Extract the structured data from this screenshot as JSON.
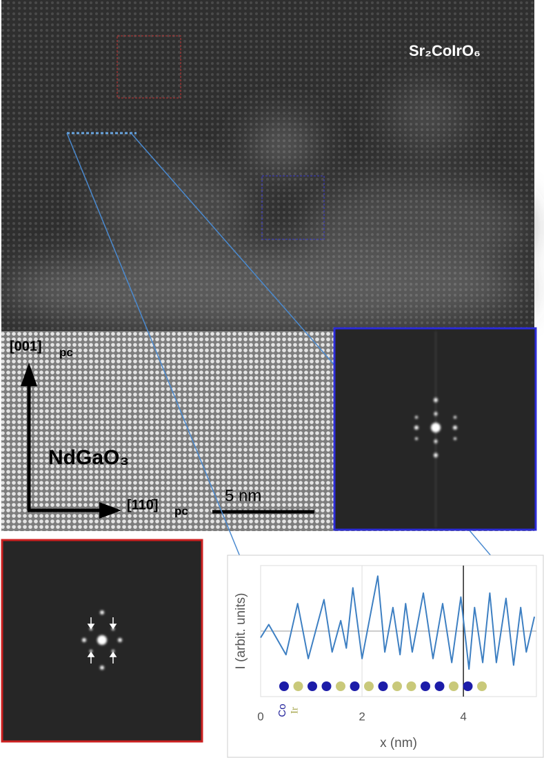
{
  "image": {
    "film_label": "Sr₂CoIrO₆",
    "substrate_label": "NdGaO₃",
    "axis_vertical": {
      "index": "[001]",
      "subscript": "pc"
    },
    "axis_horizontal": {
      "index": "[110̄]",
      "subscript": "pc"
    },
    "scale_bar": "5 nm"
  },
  "chart_data": {
    "type": "line",
    "xlabel": "x (nm)",
    "ylabel": "I (arbit. units)",
    "atom_labels": [
      "Co",
      "Ir"
    ],
    "x": [
      0,
      0.16,
      0.5,
      0.73,
      0.94,
      1.25,
      1.41,
      1.58,
      1.69,
      1.82,
      2.0,
      2.31,
      2.45,
      2.61,
      2.75,
      2.86,
      2.99,
      3.21,
      3.4,
      3.59,
      3.77,
      3.95,
      4.11,
      4.22,
      4.38,
      4.52,
      4.65,
      4.84,
      4.99,
      5.13,
      5.24,
      5.4
    ],
    "series": [
      {
        "name": "I",
        "color": "#3d7fc2",
        "values": [
          0.45,
          0.55,
          0.32,
          0.71,
          0.29,
          0.74,
          0.34,
          0.58,
          0.37,
          0.83,
          0.29,
          0.92,
          0.34,
          0.68,
          0.32,
          0.71,
          0.34,
          0.79,
          0.29,
          0.71,
          0.26,
          0.76,
          0.21,
          0.68,
          0.26,
          0.79,
          0.26,
          0.75,
          0.24,
          0.68,
          0.34,
          0.61
        ]
      }
    ],
    "xlim": [
      0,
      5.44
    ],
    "ylim": [
      0,
      1
    ],
    "xticks": [
      0,
      2,
      4
    ],
    "grid": true,
    "marker_line": 4
  }
}
